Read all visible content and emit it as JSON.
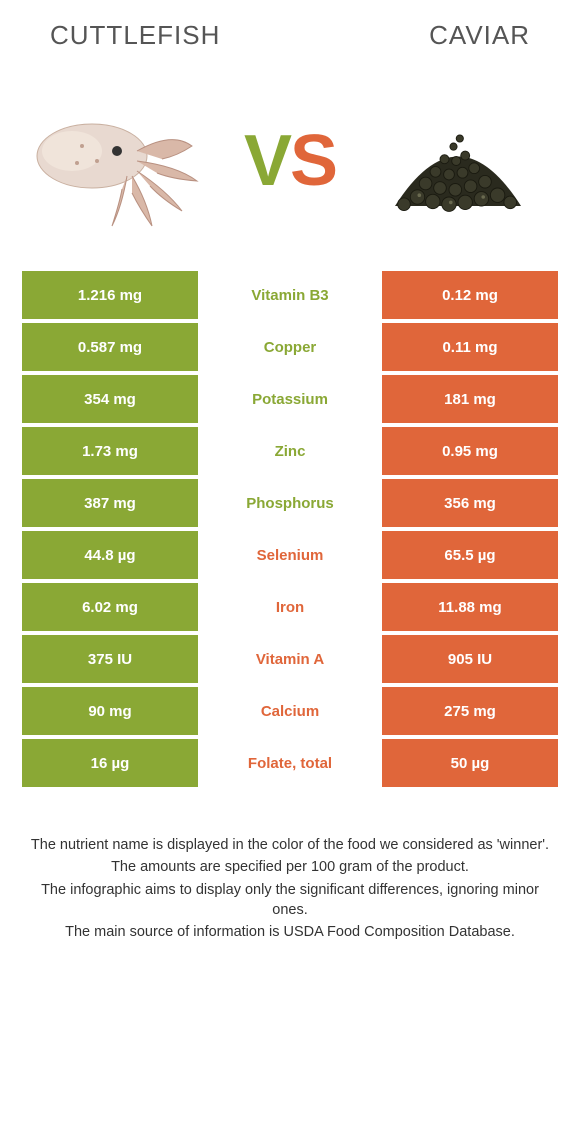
{
  "colors": {
    "left_bg": "#8aa835",
    "right_bg": "#e0663a",
    "left_text": "#8aa835",
    "right_text": "#e0663a"
  },
  "header": {
    "left_title": "Cuttlefish",
    "right_title": "Caviar",
    "vs_v": "V",
    "vs_s": "S"
  },
  "rows": [
    {
      "left": "1.216 mg",
      "nutrient": "Vitamin B3",
      "right": "0.12 mg",
      "winner": "left"
    },
    {
      "left": "0.587 mg",
      "nutrient": "Copper",
      "right": "0.11 mg",
      "winner": "left"
    },
    {
      "left": "354 mg",
      "nutrient": "Potassium",
      "right": "181 mg",
      "winner": "left"
    },
    {
      "left": "1.73 mg",
      "nutrient": "Zinc",
      "right": "0.95 mg",
      "winner": "left"
    },
    {
      "left": "387 mg",
      "nutrient": "Phosphorus",
      "right": "356 mg",
      "winner": "left"
    },
    {
      "left": "44.8 µg",
      "nutrient": "Selenium",
      "right": "65.5 µg",
      "winner": "right"
    },
    {
      "left": "6.02 mg",
      "nutrient": "Iron",
      "right": "11.88 mg",
      "winner": "right"
    },
    {
      "left": "375 IU",
      "nutrient": "Vitamin A",
      "right": "905 IU",
      "winner": "right"
    },
    {
      "left": "90 mg",
      "nutrient": "Calcium",
      "right": "275 mg",
      "winner": "right"
    },
    {
      "left": "16 µg",
      "nutrient": "Folate, total",
      "right": "50 µg",
      "winner": "right"
    }
  ],
  "footnotes": [
    "The nutrient name is displayed in the color of the food we considered as 'winner'.",
    "The amounts are specified per 100 gram of the product.",
    "The infographic aims to display only the significant differences, ignoring minor ones.",
    "The main source of information is USDA Food Composition Database."
  ]
}
